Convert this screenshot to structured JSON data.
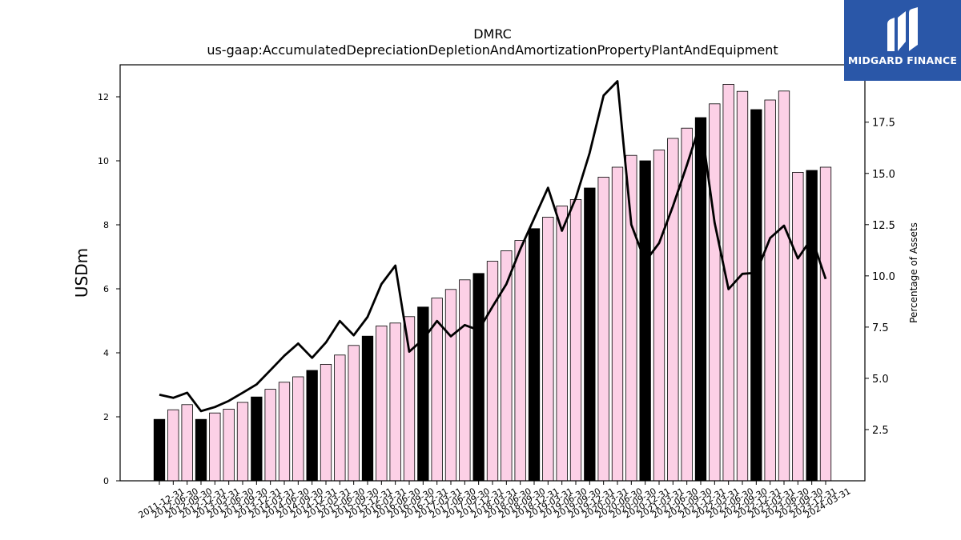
{
  "brand": {
    "name": "MIDGARD FINANCE",
    "icon": "midgard-m-logo-icon",
    "color": "#2a57a8"
  },
  "chart_data": {
    "type": "bar",
    "title": "DMRC",
    "subtitle": "us-gaap:AccumulatedDepreciationDepletionAndAmortizationPropertyPlantAndEquipment",
    "ylabel": "USDm",
    "y2label": "Percentage of Assets",
    "ylim": [
      0,
      13
    ],
    "y2lim": [
      0,
      20.3
    ],
    "yticks": [
      0,
      2,
      4,
      6,
      8,
      10,
      12
    ],
    "y2ticks": [
      2.5,
      5.0,
      7.5,
      10.0,
      12.5,
      15.0,
      17.5
    ],
    "grid": false,
    "colors": {
      "annual_bar": "#000000",
      "quarter_bar": "#fcd0e6",
      "line": "#000000"
    },
    "categories": [
      "2011-12-31",
      "2012-06-30",
      "2012-09-30",
      "2012-12-31",
      "2013-03-31",
      "2013-06-30",
      "2013-09-30",
      "2013-12-31",
      "2014-03-31",
      "2014-06-30",
      "2014-09-30",
      "2014-12-31",
      "2015-03-31",
      "2015-06-30",
      "2015-09-30",
      "2015-12-31",
      "2016-03-31",
      "2016-06-30",
      "2016-09-30",
      "2016-12-31",
      "2017-03-31",
      "2017-06-30",
      "2017-09-30",
      "2017-12-31",
      "2018-03-31",
      "2018-06-30",
      "2018-09-30",
      "2018-12-31",
      "2019-03-31",
      "2019-06-30",
      "2019-09-30",
      "2019-12-31",
      "2020-03-31",
      "2020-06-30",
      "2020-09-30",
      "2020-12-31",
      "2021-03-31",
      "2021-06-30",
      "2021-09-30",
      "2021-12-31",
      "2022-03-31",
      "2022-06-30",
      "2022-09-30",
      "2022-12-31",
      "2023-03-31",
      "2023-06-30",
      "2023-09-30",
      "2023-12-31",
      "2024-03-31"
    ],
    "series": [
      {
        "kind": "bar",
        "values": [
          1.92,
          2.22,
          2.38,
          1.92,
          2.12,
          2.24,
          2.45,
          2.62,
          2.86,
          3.08,
          3.25,
          3.45,
          3.64,
          3.93,
          4.23,
          4.52,
          4.84,
          4.93,
          5.13,
          5.43,
          5.71,
          5.98,
          6.28,
          6.48,
          6.86,
          7.19,
          7.51,
          7.88,
          8.24,
          8.59,
          8.79,
          9.15,
          9.49,
          9.8,
          10.17,
          10.0,
          10.34,
          10.7,
          11.02,
          11.35,
          11.78,
          12.39,
          12.17,
          11.6,
          11.9,
          12.18,
          9.64,
          9.7,
          9.8
        ],
        "annual": [
          true,
          false,
          false,
          true,
          false,
          false,
          false,
          true,
          false,
          false,
          false,
          true,
          false,
          false,
          false,
          true,
          false,
          false,
          false,
          true,
          false,
          false,
          false,
          true,
          false,
          false,
          false,
          true,
          false,
          false,
          false,
          true,
          false,
          false,
          false,
          true,
          false,
          false,
          false,
          true,
          false,
          false,
          false,
          true,
          false,
          false,
          false,
          true,
          false
        ]
      },
      {
        "name": "Percentage of Assets",
        "kind": "line",
        "axis": "right",
        "values": [
          4.2,
          4.05,
          4.3,
          3.4,
          3.6,
          3.9,
          4.3,
          4.7,
          5.4,
          6.1,
          6.7,
          6.0,
          6.75,
          7.8,
          7.1,
          8.0,
          9.6,
          10.5,
          6.3,
          6.9,
          7.8,
          7.05,
          7.6,
          7.35,
          8.5,
          9.6,
          11.3,
          12.8,
          14.3,
          12.2,
          13.8,
          16.0,
          18.8,
          19.5,
          12.5,
          10.7,
          11.6,
          13.4,
          15.4,
          17.5,
          12.6,
          9.35,
          10.1,
          10.15,
          11.85,
          12.45,
          10.85,
          11.85,
          9.85
        ]
      }
    ]
  }
}
